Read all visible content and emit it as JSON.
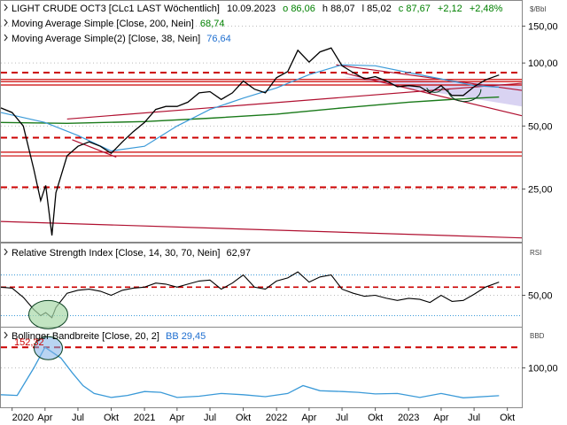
{
  "price_panel": {
    "title_parts": {
      "instrument": "LIGHT CRUDE OCT3 [CLc1 LAST Wöchentlich]",
      "date": "10.09.2023",
      "open": "o 86,06",
      "high": "h 88,07",
      "low": "l 85,02",
      "close": "c 87,67",
      "change": "+2,12",
      "change_pct": "+2,48%"
    },
    "indicator1_label": "Moving Average Simple [Close, 200, Nein]",
    "indicator1_value": "68,74",
    "indicator2_label": "Moving Average Simple(2) [Close, 38, Nein]",
    "indicator2_value": "76,64",
    "unit": "$/Bbl",
    "y_ticks": [
      "150,00",
      "100,00",
      "50,00",
      "25,00"
    ]
  },
  "rsi_panel": {
    "label": "Relative Strength Index [Close, 14, 30, 70, Nein]",
    "value": "62,97",
    "unit": "RSI",
    "y_tick": "50,00"
  },
  "bb_panel": {
    "label": "Bollinger Bandbreite [Close, 20, 2]",
    "value": "BB 29,45",
    "unit": "BBD",
    "y_tick": "100,00",
    "peak_label": "152,32"
  },
  "x_ticks": [
    "2020",
    "Apr",
    "Jul",
    "Okt",
    "2021",
    "Apr",
    "Jul",
    "Okt",
    "2022",
    "Apr",
    "Jul",
    "Okt",
    "2023",
    "Apr",
    "Jul",
    "Okt"
  ],
  "colors": {
    "price": "#000000",
    "ma200": "#1a7a1a",
    "ma38": "#3b9ad8",
    "bb": "#3b9ad8",
    "rsi": "#000000",
    "resistance": "#cc0000",
    "trendline": "#b01030",
    "channel_fill": "#d9d3f2",
    "mark_circle": "#0a4020",
    "rsi_circle_fill": "#a8d8a8",
    "bb_circle_fill": "#7fb0e8",
    "value_green": "#008000",
    "value_blue": "#1f6fd0",
    "value_red": "#cc0000"
  },
  "chart_data": [
    {
      "type": "line",
      "title": "LIGHT CRUDE OCT3 [CLc1 LAST Wöchentlich]",
      "ylabel": "$/Bbl",
      "yscale": "log",
      "ylim": [
        14,
        200
      ],
      "x_axis": "date",
      "x_range": [
        "2019-12-01",
        "2023-11-10"
      ],
      "series": [
        {
          "name": "LIGHT CRUDE OCT3 [CLc1 LAST Wöchentlich]",
          "style": "weekly bars",
          "x": [
            "2019-12-01",
            "2020-01-01",
            "2020-02-01",
            "2020-03-01",
            "2020-03-20",
            "2020-04-03",
            "2020-04-20",
            "2020-05-01",
            "2020-06-01",
            "2020-07-01",
            "2020-08-01",
            "2020-09-01",
            "2020-10-01",
            "2020-11-01",
            "2020-12-01",
            "2021-01-01",
            "2021-02-01",
            "2021-03-01",
            "2021-04-01",
            "2021-05-01",
            "2021-06-01",
            "2021-07-01",
            "2021-08-01",
            "2021-09-01",
            "2021-10-01",
            "2021-11-01",
            "2021-12-01",
            "2022-01-01",
            "2022-02-01",
            "2022-03-01",
            "2022-04-01",
            "2022-05-01",
            "2022-06-01",
            "2022-07-01",
            "2022-08-01",
            "2022-09-01",
            "2022-10-01",
            "2022-11-01",
            "2022-12-01",
            "2023-01-01",
            "2023-02-01",
            "2023-03-01",
            "2023-04-01",
            "2023-05-01",
            "2023-06-01",
            "2023-07-01",
            "2023-08-01",
            "2023-09-08"
          ],
          "values": [
            61,
            58,
            50,
            31,
            22,
            26,
            15,
            24,
            36,
            40,
            42,
            40,
            37,
            42,
            47,
            52,
            60,
            62,
            62,
            65,
            72,
            73,
            67,
            72,
            82,
            75,
            72,
            85,
            91,
            115,
            101,
            113,
            118,
            97,
            90,
            84,
            86,
            82,
            77,
            78,
            77,
            72,
            78,
            70,
            70,
            77,
            83,
            87.67
          ]
        },
        {
          "name": "Moving Average Simple [Close, 200, Nein]",
          "x": [
            "2019-12-01",
            "2020-06-01",
            "2021-01-01",
            "2021-07-01",
            "2022-01-01",
            "2022-07-01",
            "2023-01-01",
            "2023-05-01",
            "2023-09-08"
          ],
          "values": [
            52,
            51.5,
            52.5,
            54.5,
            57,
            61,
            65,
            67,
            68.74
          ]
        },
        {
          "name": "Moving Average Simple(2) [Close, 38, Nein]",
          "x": [
            "2019-12-01",
            "2020-04-01",
            "2020-07-01",
            "2020-10-01",
            "2021-01-01",
            "2021-04-01",
            "2021-07-01",
            "2021-10-01",
            "2022-01-01",
            "2022-04-01",
            "2022-07-01",
            "2022-10-01",
            "2023-01-01",
            "2023-04-01",
            "2023-07-01",
            "2023-09-08"
          ],
          "values": [
            58,
            52,
            45,
            38,
            40,
            50,
            60,
            68,
            76,
            88,
            98,
            97,
            90,
            84,
            78,
            76.64
          ]
        }
      ],
      "reference_lines": [
        90,
        83.5,
        81.5,
        78.5,
        44,
        37.5,
        36,
        25.5
      ]
    },
    {
      "type": "line",
      "title": "Relative Strength Index [Close, 14, 30, 70, Nein]",
      "ylabel": "RSI",
      "ylim": [
        20,
        100
      ],
      "x_axis": "date",
      "x_range": [
        "2019-12-01",
        "2023-11-10"
      ],
      "reference_levels": [
        70,
        30
      ],
      "series": [
        {
          "name": "Relative Strength Index [Close, 14, 30, 70, Nein]",
          "x": [
            "2019-12-01",
            "2020-01-01",
            "2020-02-01",
            "2020-03-01",
            "2020-03-20",
            "2020-04-03",
            "2020-04-20",
            "2020-05-01",
            "2020-06-01",
            "2020-07-01",
            "2020-08-01",
            "2020-09-01",
            "2020-10-01",
            "2020-11-01",
            "2020-12-01",
            "2021-01-01",
            "2021-02-01",
            "2021-03-01",
            "2021-04-01",
            "2021-05-01",
            "2021-06-01",
            "2021-07-01",
            "2021-08-01",
            "2021-09-01",
            "2021-10-01",
            "2021-11-01",
            "2021-12-01",
            "2022-01-01",
            "2022-02-01",
            "2022-03-01",
            "2022-04-01",
            "2022-05-01",
            "2022-06-01",
            "2022-07-01",
            "2022-08-01",
            "2022-09-01",
            "2022-10-01",
            "2022-11-01",
            "2022-12-01",
            "2023-01-01",
            "2023-02-01",
            "2023-03-01",
            "2023-04-01",
            "2023-05-01",
            "2023-06-01",
            "2023-07-01",
            "2023-08-01",
            "2023-09-08"
          ],
          "values": [
            58,
            57,
            48,
            36,
            30,
            33,
            28,
            38,
            52,
            55,
            56,
            54,
            50,
            55,
            57,
            58,
            62,
            61,
            58,
            61,
            64,
            65,
            56,
            62,
            70,
            58,
            56,
            64,
            67,
            73,
            63,
            68,
            70,
            56,
            52,
            49,
            50,
            47,
            45,
            47,
            46,
            43,
            50,
            44,
            45,
            51,
            58,
            62.97
          ]
        }
      ]
    },
    {
      "type": "line",
      "title": "Bollinger Bandbreite [Close, 20, 2]",
      "ylabel": "BBD",
      "ylim": [
        0,
        200
      ],
      "x_axis": "date",
      "x_range": [
        "2019-12-01",
        "2023-11-10"
      ],
      "reference_levels": [
        152.32
      ],
      "series": [
        {
          "name": "Bollinger Bandbreite [Close, 20, 2]",
          "x": [
            "2019-12-01",
            "2020-01-15",
            "2020-03-01",
            "2020-04-01",
            "2020-05-15",
            "2020-06-15",
            "2020-07-15",
            "2020-08-15",
            "2020-10-01",
            "2020-11-15",
            "2021-01-01",
            "2021-02-15",
            "2021-04-01",
            "2021-06-01",
            "2021-08-01",
            "2021-10-01",
            "2021-12-01",
            "2022-02-01",
            "2022-03-15",
            "2022-05-01",
            "2022-07-01",
            "2022-08-15",
            "2022-10-01",
            "2022-12-01",
            "2023-02-01",
            "2023-04-01",
            "2023-06-01",
            "2023-09-08"
          ],
          "values": [
            32,
            30,
            100,
            152.32,
            125,
            88,
            55,
            35,
            25,
            30,
            40,
            38,
            25,
            28,
            35,
            32,
            27,
            35,
            55,
            42,
            40,
            38,
            34,
            35,
            25,
            35,
            24,
            29.45
          ]
        }
      ]
    }
  ]
}
